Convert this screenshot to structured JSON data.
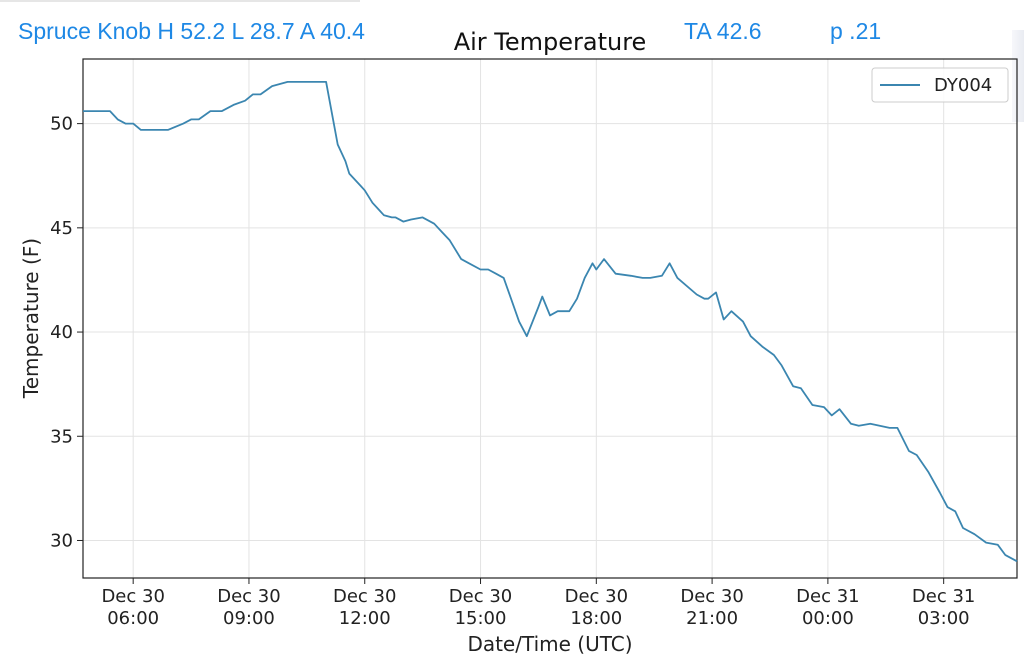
{
  "header": {
    "station_summary": "Spruce Knob H 52.2 L 28.7 A 40.4",
    "ta_text": "TA 42.6",
    "p_text": "p .21",
    "accent_color": "#1e88e5"
  },
  "chart_data": {
    "type": "line",
    "title": "Air Temperature",
    "xlabel": "Date/Time (UTC)",
    "ylabel": "Temperature (F)",
    "ylim": [
      28.2,
      53.1
    ],
    "xlim": [
      4.7,
      28.9
    ],
    "x_ticks": [
      {
        "x": 6,
        "line1": "Dec 30",
        "line2": "06:00"
      },
      {
        "x": 9,
        "line1": "Dec 30",
        "line2": "09:00"
      },
      {
        "x": 12,
        "line1": "Dec 30",
        "line2": "12:00"
      },
      {
        "x": 15,
        "line1": "Dec 30",
        "line2": "15:00"
      },
      {
        "x": 18,
        "line1": "Dec 30",
        "line2": "18:00"
      },
      {
        "x": 21,
        "line1": "Dec 30",
        "line2": "21:00"
      },
      {
        "x": 24,
        "line1": "Dec 31",
        "line2": "00:00"
      },
      {
        "x": 27,
        "line1": "Dec 31",
        "line2": "03:00"
      }
    ],
    "y_ticks": [
      30,
      35,
      40,
      45,
      50
    ],
    "grid": true,
    "legend": "top-right",
    "series": [
      {
        "name": "DY004",
        "color": "#3b86b0",
        "x": [
          4.7,
          5.4,
          5.6,
          5.8,
          6.0,
          6.2,
          6.5,
          6.9,
          7.3,
          7.5,
          7.7,
          8.0,
          8.3,
          8.6,
          8.9,
          9.1,
          9.3,
          9.6,
          10.0,
          10.3,
          10.6,
          11.0,
          11.3,
          11.5,
          11.6,
          11.9,
          12.0,
          12.2,
          12.5,
          12.7,
          12.8,
          13.0,
          13.2,
          13.5,
          13.8,
          14.0,
          14.2,
          14.5,
          14.7,
          15.0,
          15.2,
          15.4,
          15.6,
          16.0,
          16.2,
          16.5,
          16.6,
          16.8,
          17.0,
          17.3,
          17.5,
          17.7,
          17.9,
          18.0,
          18.2,
          18.5,
          18.9,
          19.2,
          19.4,
          19.7,
          19.9,
          20.1,
          20.6,
          20.8,
          20.9,
          21.1,
          21.3,
          21.5,
          21.8,
          22.0,
          22.3,
          22.6,
          22.8,
          23.1,
          23.3,
          23.6,
          23.9,
          24.1,
          24.3,
          24.6,
          24.8,
          25.1,
          25.6,
          25.8,
          26.1,
          26.3,
          26.6,
          26.9,
          27.1,
          27.3,
          27.5,
          27.8,
          28.1,
          28.4,
          28.6,
          28.9
        ],
        "y": [
          50.6,
          50.6,
          50.2,
          50.0,
          50.0,
          49.7,
          49.7,
          49.7,
          50.0,
          50.2,
          50.2,
          50.6,
          50.6,
          50.9,
          51.1,
          51.4,
          51.4,
          51.8,
          52.0,
          52.0,
          52.0,
          52.0,
          49.0,
          48.2,
          47.6,
          47.0,
          46.8,
          46.2,
          45.6,
          45.5,
          45.5,
          45.3,
          45.4,
          45.5,
          45.2,
          44.8,
          44.4,
          43.5,
          43.3,
          43.0,
          43.0,
          42.8,
          42.6,
          40.5,
          39.8,
          41.2,
          41.7,
          40.8,
          41.0,
          41.0,
          41.6,
          42.6,
          43.3,
          43.0,
          43.5,
          42.8,
          42.7,
          42.6,
          42.6,
          42.7,
          43.3,
          42.6,
          41.8,
          41.6,
          41.6,
          41.9,
          40.6,
          41.0,
          40.5,
          39.8,
          39.3,
          38.9,
          38.4,
          37.4,
          37.3,
          36.5,
          36.4,
          36.0,
          36.3,
          35.6,
          35.5,
          35.6,
          35.4,
          35.4,
          34.3,
          34.1,
          33.3,
          32.3,
          31.6,
          31.4,
          30.6,
          30.3,
          29.9,
          29.8,
          29.3,
          29.0
        ]
      }
    ]
  }
}
